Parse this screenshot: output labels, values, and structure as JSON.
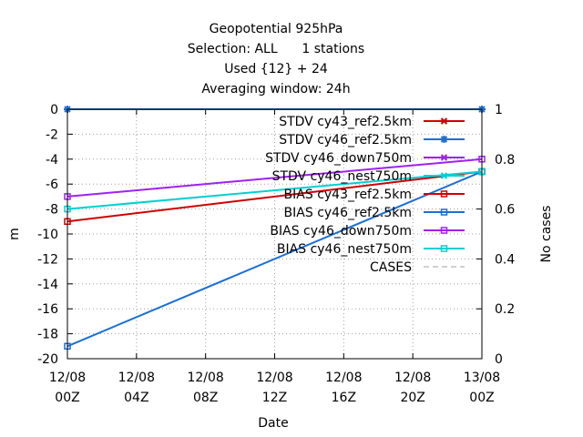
{
  "chart_data": {
    "type": "line",
    "title_lines": [
      "Geopotential 925hPa",
      "Selection: ALL      1 stations",
      "Used {12} + 24",
      "Averaging window: 24h"
    ],
    "xlabel": "Date",
    "ylabel": "m",
    "y2label": "No cases",
    "x": [
      0,
      24
    ],
    "xlim": [
      0,
      24
    ],
    "ylim": [
      -20,
      0
    ],
    "y2lim": [
      0,
      1
    ],
    "xticks": [
      {
        "v": 0,
        "l1": "12/08",
        "l2": "00Z"
      },
      {
        "v": 4,
        "l1": "12/08",
        "l2": "04Z"
      },
      {
        "v": 8,
        "l1": "12/08",
        "l2": "08Z"
      },
      {
        "v": 12,
        "l1": "12/08",
        "l2": "12Z"
      },
      {
        "v": 16,
        "l1": "12/08",
        "l2": "16Z"
      },
      {
        "v": 20,
        "l1": "12/08",
        "l2": "20Z"
      },
      {
        "v": 24,
        "l1": "13/08",
        "l2": "00Z"
      }
    ],
    "yticks": [
      0,
      -2,
      -4,
      -6,
      -8,
      -10,
      -12,
      -14,
      -16,
      -18,
      -20
    ],
    "y2ticks": [
      "1",
      "0.8",
      "0.6",
      "0.4",
      "0.2",
      "0"
    ],
    "grid": true,
    "legend_position": "top-right",
    "series": [
      {
        "name": "STDV cy43_ref2.5km",
        "color": "#d00000",
        "marker": "cross",
        "values": [
          null,
          null
        ]
      },
      {
        "name": "STDV cy46_ref2.5km",
        "color": "#1a6fd6",
        "marker": "star",
        "values": [
          0,
          0
        ]
      },
      {
        "name": "STDV cy46_down750m",
        "color": "#a020f0",
        "marker": "cross",
        "values": [
          null,
          null
        ]
      },
      {
        "name": "STDV cy46_nest750m",
        "color": "#00d0d0",
        "marker": "cross",
        "values": [
          null,
          null
        ]
      },
      {
        "name": "BIAS cy43_ref2.5km",
        "color": "#d00000",
        "marker": "square",
        "values": [
          -9,
          -5
        ]
      },
      {
        "name": "BIAS cy46_ref2.5km",
        "color": "#1a6fd6",
        "marker": "square",
        "values": [
          -19,
          -5
        ]
      },
      {
        "name": "BIAS cy46_down750m",
        "color": "#a020f0",
        "marker": "square",
        "values": [
          -7,
          -4
        ]
      },
      {
        "name": "BIAS cy46_nest750m",
        "color": "#00d0d0",
        "marker": "square",
        "values": [
          -8,
          -5
        ]
      },
      {
        "name": "CASES",
        "color": "#a0a0a0",
        "marker": "none",
        "dashed": true,
        "values": [
          null,
          null
        ]
      }
    ]
  }
}
